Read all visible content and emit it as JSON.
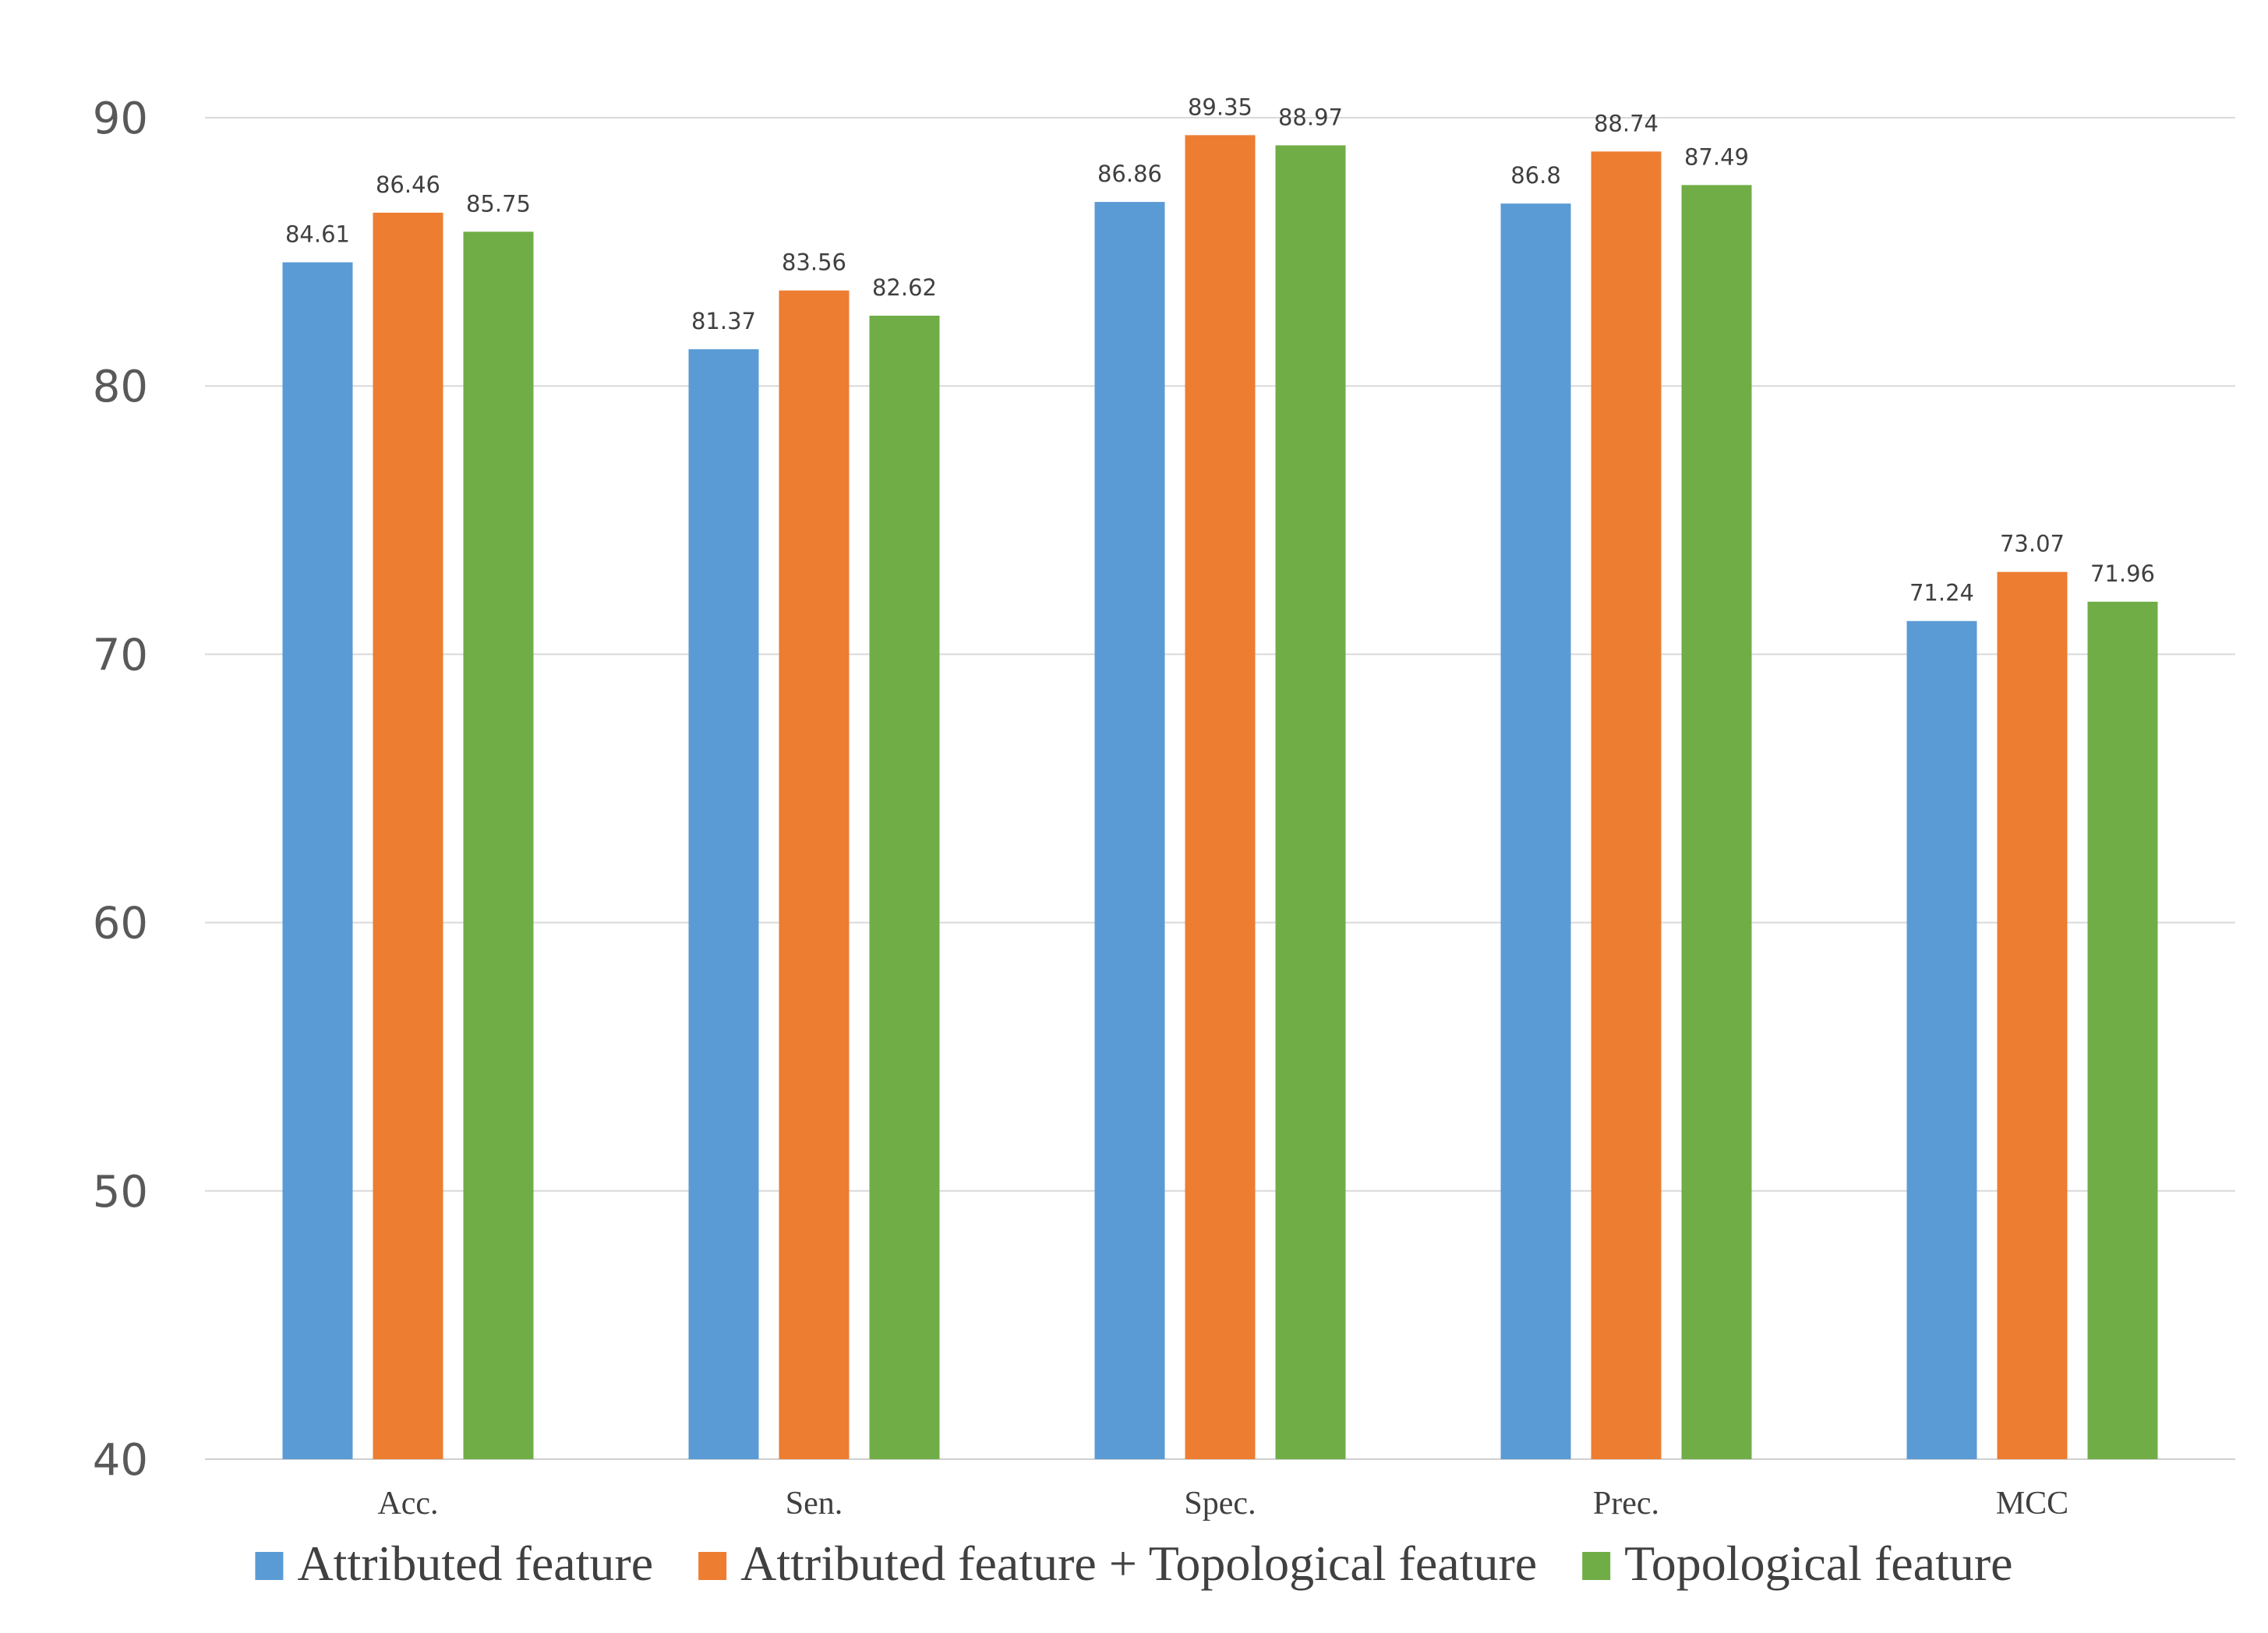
{
  "chart_data": {
    "type": "bar",
    "title": "",
    "xlabel": "",
    "ylabel": "",
    "ylim": [
      40,
      90
    ],
    "y_ticks": [
      40,
      50,
      60,
      70,
      80,
      90
    ],
    "grid": true,
    "legend_position": "bottom",
    "categories": [
      "Acc.",
      "Sen.",
      "Spec.",
      "Prec.",
      "MCC"
    ],
    "series": [
      {
        "name": "Attributed feature",
        "color": "#5b9bd5",
        "values": [
          84.61,
          81.37,
          86.86,
          86.8,
          71.24
        ],
        "labels": [
          "84.61",
          "81.37",
          "86.86",
          "86.8",
          "71.24"
        ]
      },
      {
        "name": "Attributed feature + Topological feature",
        "color": "#ed7d31",
        "values": [
          86.46,
          83.56,
          89.35,
          88.74,
          73.07
        ],
        "labels": [
          "86.46",
          "83.56",
          "89.35",
          "88.74",
          "73.07"
        ]
      },
      {
        "name": "Topological feature",
        "color": "#70ad47",
        "values": [
          85.75,
          82.62,
          88.97,
          87.49,
          71.96
        ],
        "labels": [
          "85.75",
          "82.62",
          "88.97",
          "87.49",
          "71.96"
        ]
      }
    ]
  }
}
